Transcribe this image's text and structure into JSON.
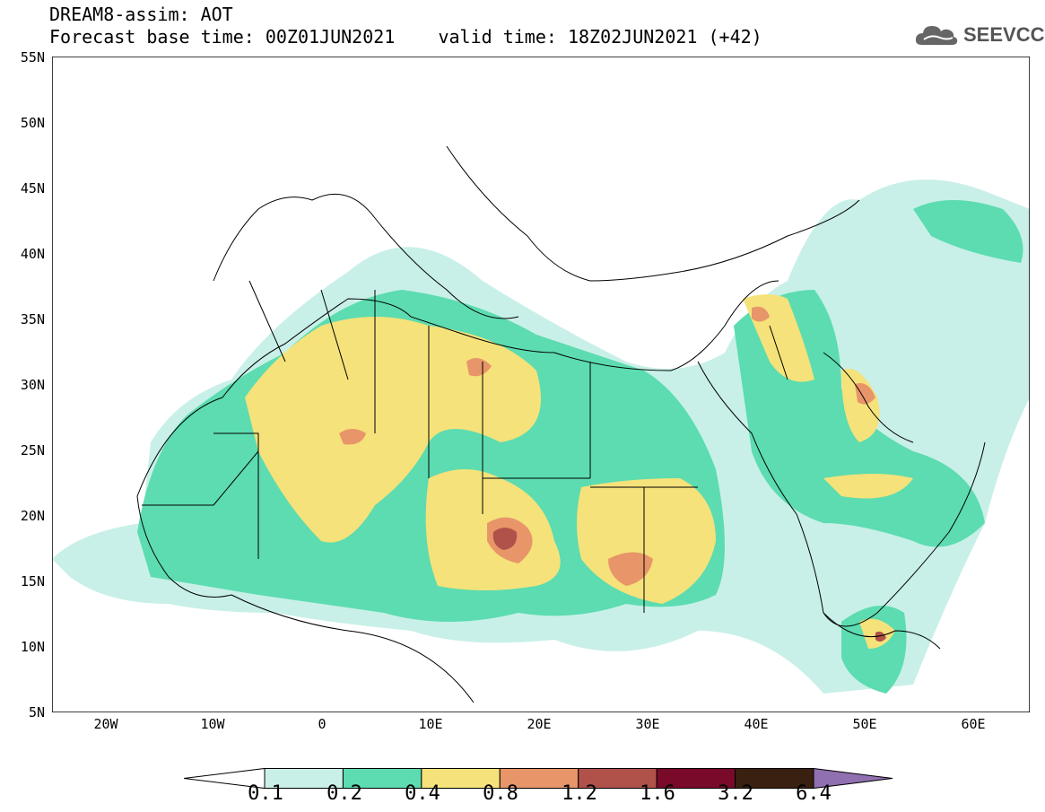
{
  "title": {
    "line1": "DREAM8-assim: AOT",
    "line2": "Forecast base time: 00Z01JUN2021    valid time: 18Z02JUN2021 (+42)"
  },
  "logo": {
    "text": "SEEVCCC",
    "icon": "cloud-icon"
  },
  "map": {
    "lon_range": [
      -25,
      65
    ],
    "lat_range": [
      5,
      55
    ],
    "lat_labels": [
      "55N",
      "50N",
      "45N",
      "40N",
      "35N",
      "30N",
      "25N",
      "20N",
      "15N",
      "10N",
      "5N"
    ],
    "lon_labels": [
      "20W",
      "10W",
      "0",
      "10E",
      "20E",
      "30E",
      "40E",
      "50E",
      "60E"
    ]
  },
  "colorbar": {
    "labels": [
      "0.1",
      "0.2",
      "0.4",
      "0.8",
      "1.2",
      "1.6",
      "3.2",
      "6.4"
    ],
    "colors": [
      "#c8f0e8",
      "#5cdcb0",
      "#f5e27a",
      "#e8956a",
      "#b0524a",
      "#7a0a2a",
      "#3a2010",
      "#9070b0"
    ]
  }
}
